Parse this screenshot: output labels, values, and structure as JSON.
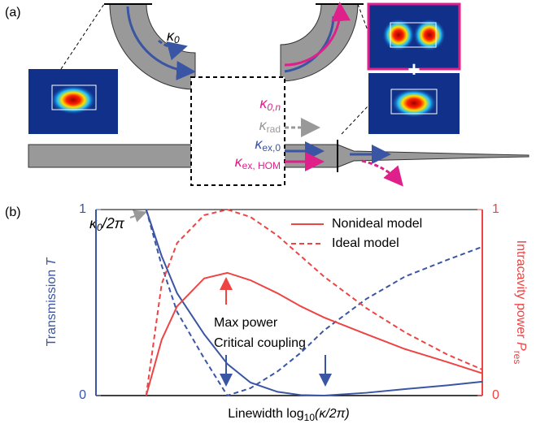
{
  "panel_a": {
    "label": "(a)",
    "plus": "+",
    "kappa_0": {
      "main": "κ",
      "sub": "0"
    },
    "kappa_0n": {
      "main": "κ",
      "sub": "0,n"
    },
    "kappa_rad": {
      "main": "κ",
      "sub": "rad"
    },
    "kappa_ex0": {
      "main": "κ",
      "sub": "ex,0"
    },
    "kappa_exhom": {
      "main": "κ",
      "sub": "ex, HOM"
    }
  },
  "chart_data": {
    "type": "line",
    "panel_label": "(b)",
    "xlabel": {
      "main": "Linewidth log",
      "sub": "10",
      "tail": "(κ/2π)"
    },
    "ylabel": {
      "main": "Transmission ",
      "var": "T"
    },
    "y2label": {
      "main": "Intracavity power ",
      "var": "P",
      "sub": "res"
    },
    "xlim": [
      0,
      10
    ],
    "ylim": [
      0,
      1
    ],
    "yticks": [
      0,
      1
    ],
    "y2lim": [
      0,
      1
    ],
    "y2ticks": [
      0,
      1
    ],
    "legend": "upper right",
    "x": [
      1.3,
      1.7,
      2.1,
      2.8,
      3.4,
      4,
      4.7,
      5.3,
      5.9,
      7,
      8,
      9.1,
      10
    ],
    "series": [
      {
        "color": "#3a55a4",
        "linestyle": "solid",
        "values": [
          1,
          0.75,
          0.55,
          0.33,
          0.17,
          0.07,
          0.02,
          0.003,
          0,
          0.015,
          0.035,
          0.055,
          0.075
        ]
      },
      {
        "color": "#3a55a4",
        "linestyle": "dashed",
        "values": [
          1,
          0.7,
          0.45,
          0.2,
          0,
          0.04,
          0.13,
          0.23,
          0.35,
          0.52,
          0.64,
          0.73,
          0.8
        ]
      },
      {
        "name": "Nonideal model",
        "axis": "y2",
        "color": "#ee4444",
        "linestyle": "solid",
        "values": [
          0,
          0.3,
          0.48,
          0.63,
          0.66,
          0.62,
          0.55,
          0.48,
          0.42,
          0.33,
          0.25,
          0.18,
          0.12
        ]
      },
      {
        "name": "Ideal model",
        "axis": "y2",
        "color": "#ee4444",
        "linestyle": "dashed",
        "values": [
          0,
          0.6,
          0.82,
          0.97,
          1,
          0.96,
          0.86,
          0.75,
          0.64,
          0.47,
          0.34,
          0.22,
          0.14
        ]
      }
    ],
    "annotations": {
      "kappa": {
        "main": "κ",
        "sub": "0",
        "tail": "/2π"
      },
      "max_power": "Max power",
      "critical": "Critical coupling"
    }
  }
}
